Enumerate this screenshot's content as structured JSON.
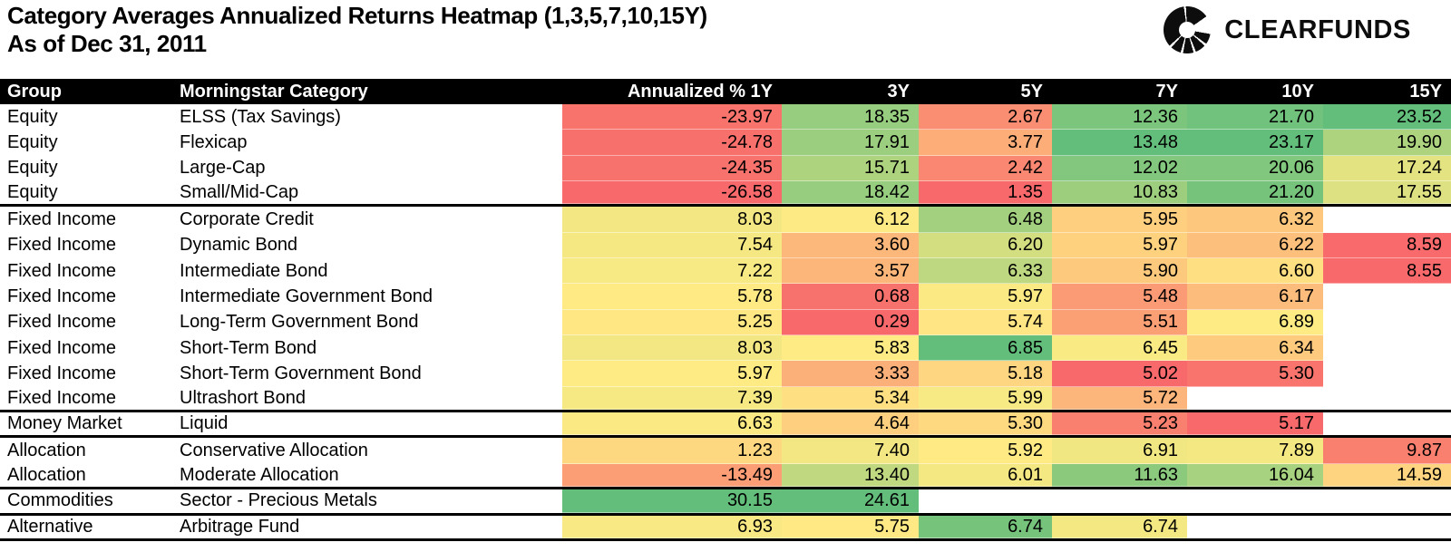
{
  "header": {
    "title": "Category Averages Annualized Returns Heatmap (1,3,5,7,10,15Y)",
    "subtitle": "As of Dec 31, 2011",
    "brand": "CLEARFUNDS"
  },
  "chart_data": {
    "type": "heatmap",
    "title": "Category Averages Annualized Returns Heatmap (1,3,5,7,10,15Y)",
    "subtitle": "As of Dec 31, 2011",
    "column_headers": [
      "Group",
      "Morningstar Category",
      "Annualized % 1Y",
      "3Y",
      "5Y",
      "7Y",
      "10Y",
      "15Y"
    ],
    "value_columns": [
      "1Y",
      "3Y",
      "5Y",
      "7Y",
      "10Y",
      "15Y"
    ],
    "value_format": "two-decimals",
    "colormap": {
      "low": "#F8696B",
      "mid": "#FFEB84",
      "high": "#63BE7B",
      "normalization": "per-column: min -> low, median -> mid, max -> high; blank cells white"
    },
    "rows": [
      {
        "group": "Equity",
        "category": "ELSS (Tax Savings)",
        "values": [
          -23.97,
          18.35,
          2.67,
          12.36,
          21.7,
          23.52
        ],
        "group_end": false
      },
      {
        "group": "Equity",
        "category": "Flexicap",
        "values": [
          -24.78,
          17.91,
          3.77,
          13.48,
          23.17,
          19.9
        ],
        "group_end": false
      },
      {
        "group": "Equity",
        "category": "Large-Cap",
        "values": [
          -24.35,
          15.71,
          2.42,
          12.02,
          20.06,
          17.24
        ],
        "group_end": false
      },
      {
        "group": "Equity",
        "category": "Small/Mid-Cap",
        "values": [
          -26.58,
          18.42,
          1.35,
          10.83,
          21.2,
          17.55
        ],
        "group_end": true
      },
      {
        "group": "Fixed Income",
        "category": "Corporate Credit",
        "values": [
          8.03,
          6.12,
          6.48,
          5.95,
          6.32,
          null
        ],
        "group_end": false
      },
      {
        "group": "Fixed Income",
        "category": "Dynamic Bond",
        "values": [
          7.54,
          3.6,
          6.2,
          5.97,
          6.22,
          8.59
        ],
        "group_end": false
      },
      {
        "group": "Fixed Income",
        "category": "Intermediate Bond",
        "values": [
          7.22,
          3.57,
          6.33,
          5.9,
          6.6,
          8.55
        ],
        "group_end": false
      },
      {
        "group": "Fixed Income",
        "category": "Intermediate Government Bond",
        "values": [
          5.78,
          0.68,
          5.97,
          5.48,
          6.17,
          null
        ],
        "group_end": false
      },
      {
        "group": "Fixed Income",
        "category": "Long-Term Government Bond",
        "values": [
          5.25,
          0.29,
          5.74,
          5.51,
          6.89,
          null
        ],
        "group_end": false
      },
      {
        "group": "Fixed Income",
        "category": "Short-Term Bond",
        "values": [
          8.03,
          5.83,
          6.85,
          6.45,
          6.34,
          null
        ],
        "group_end": false
      },
      {
        "group": "Fixed Income",
        "category": "Short-Term Government Bond",
        "values": [
          5.97,
          3.33,
          5.18,
          5.02,
          5.3,
          null
        ],
        "group_end": false
      },
      {
        "group": "Fixed Income",
        "category": "Ultrashort Bond",
        "values": [
          7.39,
          5.34,
          5.99,
          5.72,
          null,
          null
        ],
        "group_end": true
      },
      {
        "group": "Money Market",
        "category": "Liquid",
        "values": [
          6.63,
          4.64,
          5.3,
          5.23,
          5.17,
          null
        ],
        "group_end": true
      },
      {
        "group": "Allocation",
        "category": "Conservative Allocation",
        "values": [
          1.23,
          7.4,
          5.92,
          6.91,
          7.89,
          9.87
        ],
        "group_end": false
      },
      {
        "group": "Allocation",
        "category": "Moderate Allocation",
        "values": [
          -13.49,
          13.4,
          6.01,
          11.63,
          16.04,
          14.59
        ],
        "group_end": true
      },
      {
        "group": "Commodities",
        "category": "Sector - Precious Metals",
        "values": [
          30.15,
          24.61,
          null,
          null,
          null,
          null
        ],
        "group_end": true
      },
      {
        "group": "Alternative",
        "category": "Arbitrage Fund",
        "values": [
          6.93,
          5.75,
          6.74,
          6.74,
          null,
          null
        ],
        "group_end": true
      }
    ]
  }
}
